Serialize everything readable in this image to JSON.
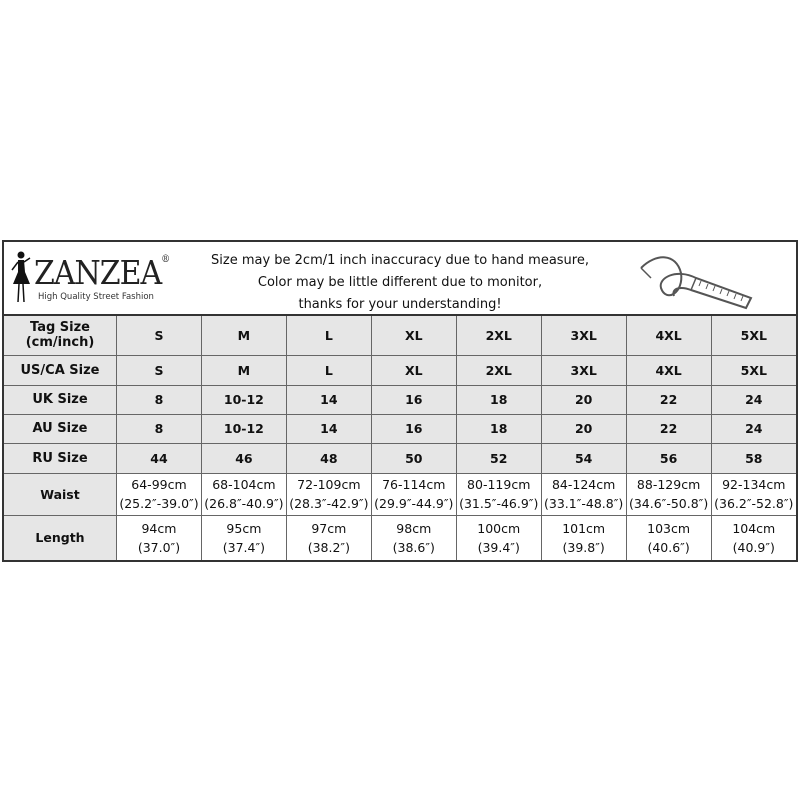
{
  "brand": {
    "name": "ZANZEA",
    "registered": "®",
    "tagline": "High Quality Street Fashion"
  },
  "notes": [
    "Size may be 2cm/1 inch inaccuracy due to hand measure,",
    "Color may be little different due to monitor,",
    "thanks for your understanding!"
  ],
  "icons": [
    "woman-silhouette-icon",
    "measuring-tape-icon"
  ],
  "rows": [
    {
      "label": "Tag Size\n(cm/inch)",
      "values": [
        "S",
        "M",
        "L",
        "XL",
        "2XL",
        "3XL",
        "4XL",
        "5XL"
      ]
    },
    {
      "label": "US/CA Size",
      "values": [
        "S",
        "M",
        "L",
        "XL",
        "2XL",
        "3XL",
        "4XL",
        "5XL"
      ]
    },
    {
      "label": "UK Size",
      "values": [
        "8",
        "10-12",
        "14",
        "16",
        "18",
        "20",
        "22",
        "24"
      ]
    },
    {
      "label": "AU Size",
      "values": [
        "8",
        "10-12",
        "14",
        "16",
        "18",
        "20",
        "22",
        "24"
      ]
    },
    {
      "label": "RU Size",
      "values": [
        "44",
        "46",
        "48",
        "50",
        "52",
        "54",
        "56",
        "58"
      ]
    },
    {
      "label": "Waist",
      "values": [
        "64-99cm\n(25.2″-39.0″)",
        "68-104cm\n(26.8″-40.9″)",
        "72-109cm\n(28.3″-42.9″)",
        "76-114cm\n(29.9″-44.9″)",
        "80-119cm\n(31.5″-46.9″)",
        "84-124cm\n(33.1″-48.8″)",
        "88-129cm\n(34.6″-50.8″)",
        "92-134cm\n(36.2″-52.8″)"
      ]
    },
    {
      "label": "Length",
      "values": [
        "94cm\n(37.0″)",
        "95cm\n(37.4″)",
        "97cm\n(38.2″)",
        "98cm\n(38.6″)",
        "100cm\n(39.4″)",
        "101cm\n(39.8″)",
        "103cm\n(40.6″)",
        "104cm\n(40.9″)"
      ]
    }
  ]
}
